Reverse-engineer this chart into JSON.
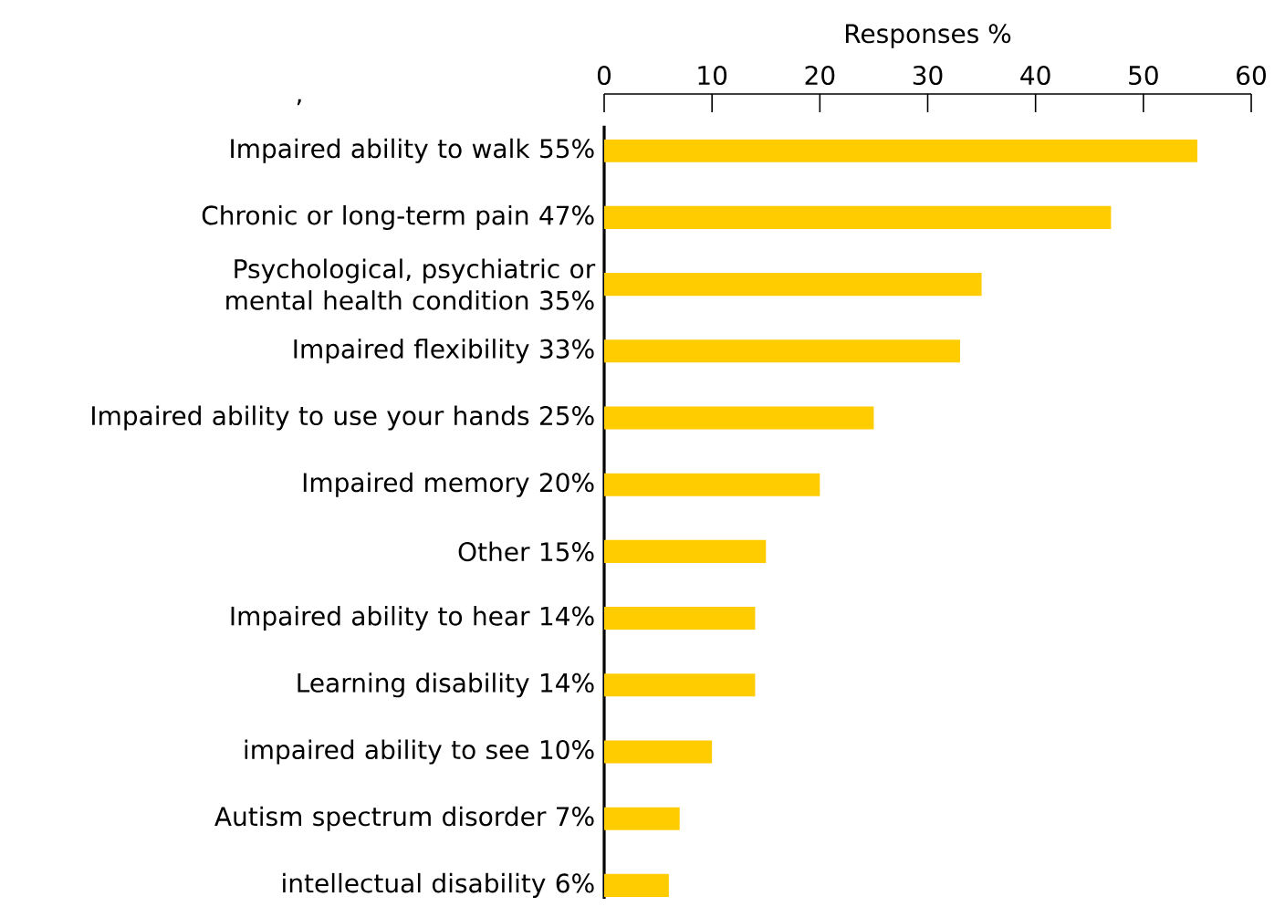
{
  "chart_data": {
    "type": "bar",
    "orientation": "horizontal",
    "xlabel": "Responses %",
    "categories": [
      "Impaired ability to walk 55%",
      "Chronic or long-term pain 47%",
      "Psychological, psychiatric or mental health condition 35%",
      "Impaired flexibility 33%",
      "Impaired ability to use your hands 25%",
      "Impaired memory 20%",
      "Other 15%",
      "Impaired ability to hear 14%",
      "Learning disability 14%",
      "impaired ability to see 10%",
      "Autism spectrum disorder 7%",
      "intellectual disability 6%"
    ],
    "values": [
      55,
      47,
      35,
      33,
      25,
      20,
      15,
      14,
      14,
      10,
      7,
      6
    ],
    "color": "#ffcc00",
    "xlim": [
      0,
      60
    ],
    "xticks": [
      0,
      10,
      20,
      30,
      40,
      50,
      60
    ],
    "annotations": [
      ","
    ]
  }
}
